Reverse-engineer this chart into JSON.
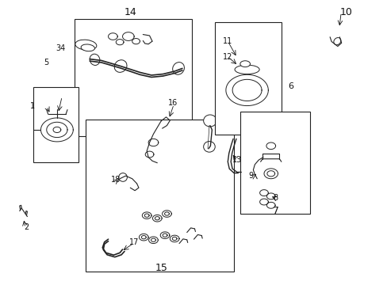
{
  "bg_color": "#ffffff",
  "fig_width": 4.89,
  "fig_height": 3.6,
  "dpi": 100,
  "dark": "#111111",
  "labels": {
    "14": [
      0.335,
      0.96,
      9
    ],
    "10": [
      0.895,
      0.96,
      9
    ],
    "6": [
      0.752,
      0.698,
      8
    ],
    "11": [
      0.588,
      0.858,
      7
    ],
    "12": [
      0.588,
      0.803,
      7
    ],
    "1": [
      0.082,
      0.628,
      7
    ],
    "34": [
      0.155,
      0.832,
      7
    ],
    "5": [
      0.117,
      0.782,
      7
    ],
    "2": [
      0.065,
      0.2,
      7
    ],
    "16": [
      0.445,
      0.64,
      7
    ],
    "18": [
      0.298,
      0.368,
      7
    ],
    "17": [
      0.345,
      0.148,
      7
    ],
    "13": [
      0.612,
      0.438,
      7
    ],
    "9": [
      0.648,
      0.383,
      7
    ],
    "8": [
      0.712,
      0.305,
      7
    ],
    "15": [
      0.415,
      0.055,
      9
    ],
    "7": [
      0.713,
      0.258,
      9
    ]
  }
}
